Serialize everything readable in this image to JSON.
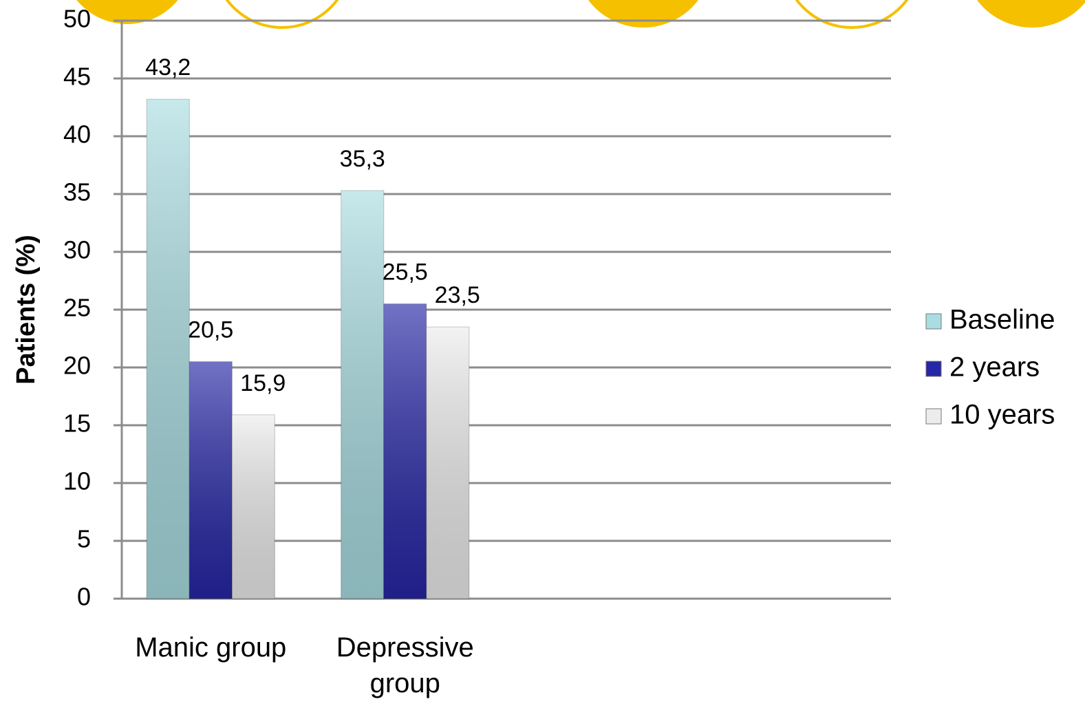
{
  "chart_data": {
    "type": "bar",
    "y_label": "Patients (%)",
    "categories": [
      "Manic group",
      "Depressive group",
      null,
      null
    ],
    "series": [
      {
        "name": "Baseline",
        "color": "#a9dde2",
        "values": [
          43.2,
          35.3,
          null,
          null
        ],
        "value_labels": [
          "43,2",
          "35,3",
          null,
          null
        ]
      },
      {
        "name": "2 years",
        "color": "#2626a6",
        "values": [
          20.5,
          25.5,
          null,
          null
        ],
        "value_labels": [
          "20,5",
          "25,5",
          null,
          null
        ]
      },
      {
        "name": "10 years",
        "color": "#ececec",
        "values": [
          15.9,
          23.5,
          null,
          null
        ],
        "value_labels": [
          "15,9",
          "23,5",
          null,
          null
        ]
      }
    ],
    "ylim": [
      0,
      50
    ],
    "yticks": [
      0,
      5,
      10,
      15,
      20,
      25,
      30,
      35,
      40,
      45,
      50
    ],
    "grid": true,
    "legend": "right"
  }
}
